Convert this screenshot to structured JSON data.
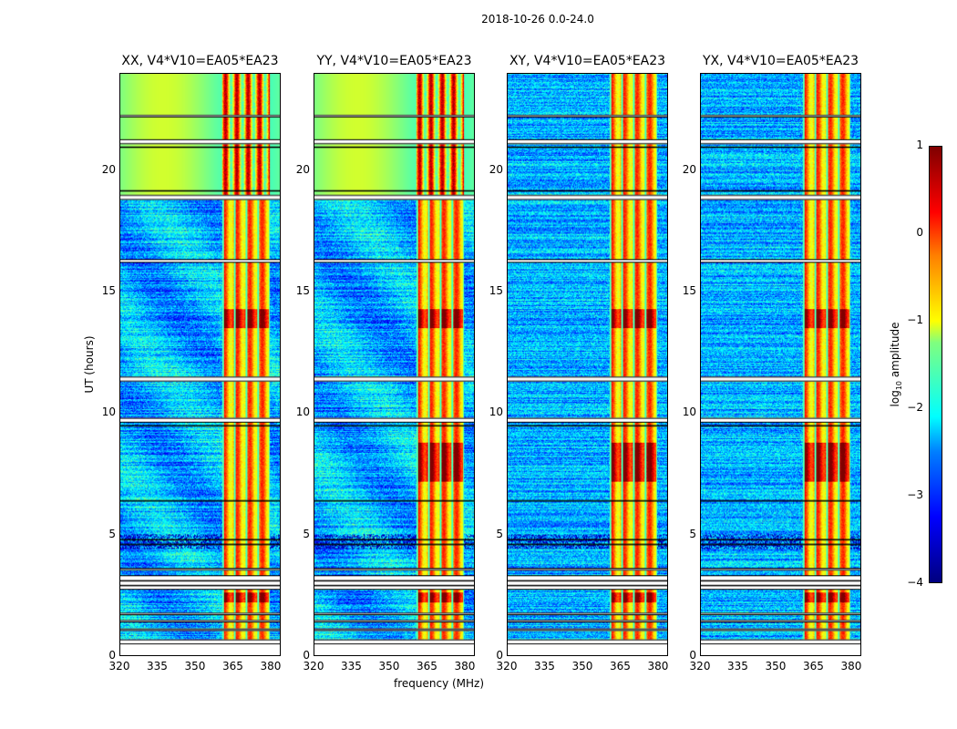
{
  "chart_data": {
    "type": "heatmap",
    "title": "2018-10-26 0.0-24.0",
    "xlabel": "frequency (MHz)",
    "ylabel": "UT (hours)",
    "xlim": [
      320,
      384
    ],
    "ylim": [
      0,
      24
    ],
    "xticks": [
      "320",
      "335",
      "350",
      "365",
      "380"
    ],
    "yticks": [
      "0",
      "5",
      "10",
      "15",
      "20"
    ],
    "panels": [
      {
        "title": "XX, V4*V10=EA05*EA23",
        "green_top": true
      },
      {
        "title": "YY, V4*V10=EA05*EA23",
        "green_top": true
      },
      {
        "title": "XY, V4*V10=EA05*EA23",
        "green_top": false
      },
      {
        "title": "YX, V4*V10=EA05*EA23",
        "green_top": false
      }
    ],
    "rfi_band_mhz": [
      360.5,
      380
    ],
    "flagged_hours": [
      [
        0.45,
        0.65
      ],
      [
        1.0,
        1.1
      ],
      [
        1.35,
        1.45
      ],
      [
        1.65,
        1.75
      ],
      [
        2.7,
        3.3
      ],
      [
        3.5,
        3.6
      ],
      [
        9.6,
        9.8
      ],
      [
        11.3,
        11.5
      ],
      [
        16.2,
        16.35
      ],
      [
        18.8,
        19.0
      ],
      [
        21.1,
        21.3
      ],
      [
        22.2,
        22.3
      ]
    ],
    "colorbar": {
      "label_prefix": "log",
      "label_sub": "10",
      "label_suffix": " amplitude",
      "ticks": [
        "1",
        "0",
        "−1",
        "−2",
        "−3",
        "−4"
      ],
      "range": [
        -4,
        1
      ]
    }
  }
}
